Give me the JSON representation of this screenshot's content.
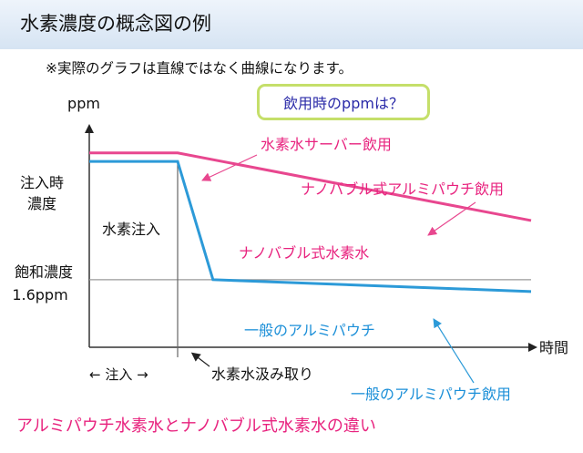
{
  "header": {
    "title": "水素濃度の概念図の例"
  },
  "note": "※実際のグラフは直線ではなく曲線になります。",
  "callout": "飲用時のppmは？",
  "footer": "アルミパウチ水素水とナノバブル式水素水の違い",
  "colors": {
    "pink": "#e8478f",
    "blue": "#2c9ad8",
    "label_pink": "#e8227e",
    "label_blue": "#1b8fd8",
    "axis": "#333333",
    "ref": "#999999"
  },
  "chart_data": {
    "type": "line",
    "ylabel": "ppm",
    "xlabel": "時間",
    "y_ticks": [
      {
        "label": "注入時\n濃度",
        "level": "injection"
      },
      {
        "label": "飽和濃度\n1.6ppm",
        "level": "saturation"
      }
    ],
    "phase_labels": {
      "injecting": "水素注入",
      "injection_span": "← 注入 →",
      "removed": "水素水汲み取り"
    },
    "series": [
      {
        "name": "ナノバブル式水素水",
        "color": "#e8478f",
        "values": [
          {
            "t": 0,
            "ppm": 2.35
          },
          {
            "t": 1,
            "ppm": 2.35
          },
          {
            "t": 5,
            "ppm": 1.95
          }
        ]
      },
      {
        "name": "一般のアルミパウチ",
        "color": "#2c9ad8",
        "values": [
          {
            "t": 0,
            "ppm": 2.3
          },
          {
            "t": 1,
            "ppm": 2.3
          },
          {
            "t": 1.4,
            "ppm": 1.6
          },
          {
            "t": 5,
            "ppm": 1.53
          }
        ]
      }
    ],
    "annotations": [
      {
        "text": "水素水サーバー飲用",
        "color": "#e8227e",
        "target_series": 0
      },
      {
        "text": "ナノバブル式アルミパウチ飲用",
        "color": "#e8227e",
        "target_series": 0
      },
      {
        "text": "一般のアルミパウチ飲用",
        "color": "#1b8fd8",
        "target_series": 1
      }
    ]
  }
}
